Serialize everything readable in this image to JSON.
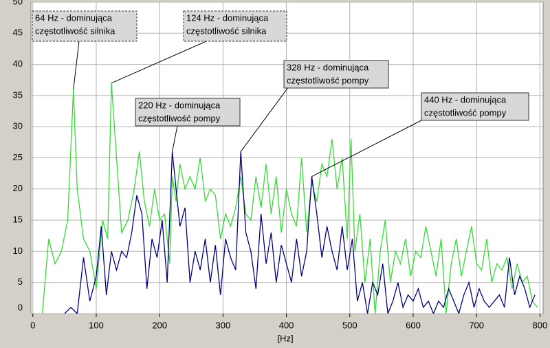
{
  "chart_data": {
    "type": "line",
    "x_label": "[Hz]",
    "xlim": [
      -3,
      805
    ],
    "ylim": [
      0,
      50
    ],
    "xticks": [
      0,
      100,
      200,
      300,
      400,
      500,
      600,
      700,
      800
    ],
    "yticks": [
      0,
      5,
      10,
      15,
      20,
      25,
      30,
      35,
      40,
      45,
      50
    ],
    "grid": true,
    "series": [
      {
        "color": "#33dd33",
        "x": [
          15,
          25,
          35,
          45,
          55,
          64,
          70,
          80,
          90,
          100,
          110,
          118,
          124,
          132,
          140,
          150,
          160,
          168,
          176,
          184,
          192,
          200,
          208,
          216,
          220,
          226,
          232,
          240,
          248,
          256,
          264,
          272,
          280,
          288,
          296,
          304,
          312,
          320,
          328,
          336,
          344,
          352,
          360,
          368,
          376,
          384,
          392,
          400,
          408,
          416,
          424,
          432,
          440,
          448,
          456,
          464,
          472,
          480,
          488,
          496,
          502,
          508,
          516,
          524,
          532,
          540,
          548,
          556,
          564,
          572,
          580,
          588,
          596,
          604,
          612,
          620,
          628,
          636,
          644,
          652,
          660,
          668,
          676,
          684,
          692,
          700,
          708,
          716,
          724,
          732,
          740,
          748,
          756,
          764,
          772,
          780,
          788,
          796
        ],
        "values": [
          0,
          12,
          8,
          10,
          15,
          36,
          20,
          12,
          10,
          4,
          15,
          12,
          37,
          25,
          13,
          15,
          20,
          26,
          18,
          14,
          20,
          15,
          16,
          8,
          22,
          18,
          24,
          20,
          22,
          20,
          25,
          18,
          20,
          19,
          12,
          16,
          14,
          17,
          22,
          16,
          15,
          22,
          17,
          24,
          16,
          22,
          13,
          20,
          16,
          14,
          25,
          13,
          21,
          18,
          24,
          22,
          28,
          20,
          25,
          12,
          28,
          10,
          16,
          5,
          12,
          0,
          10,
          15,
          5,
          10,
          8,
          12,
          6,
          10,
          9,
          14,
          10,
          6,
          12,
          0,
          8,
          12,
          6,
          10,
          14,
          8,
          7,
          12,
          5,
          8,
          7,
          9,
          4,
          8,
          5,
          6,
          2,
          1
        ]
      },
      {
        "color": "#000080",
        "x": [
          50,
          60,
          70,
          80,
          90,
          100,
          108,
          116,
          124,
          132,
          140,
          148,
          156,
          164,
          172,
          180,
          188,
          196,
          204,
          212,
          220,
          226,
          232,
          240,
          248,
          256,
          264,
          272,
          280,
          288,
          296,
          304,
          312,
          320,
          328,
          336,
          344,
          352,
          360,
          368,
          376,
          384,
          392,
          400,
          408,
          416,
          424,
          432,
          440,
          448,
          456,
          464,
          472,
          480,
          488,
          496,
          504,
          512,
          520,
          528,
          536,
          544,
          552,
          560,
          568,
          576,
          584,
          592,
          600,
          608,
          616,
          624,
          632,
          640,
          648,
          656,
          664,
          672,
          680,
          688,
          696,
          704,
          712,
          720,
          728,
          736,
          744,
          752,
          760,
          768,
          776,
          784,
          792
        ],
        "values": [
          0,
          1,
          0,
          9,
          2,
          6,
          14,
          3,
          10,
          7,
          10,
          9,
          13,
          19,
          16,
          4,
          12,
          9,
          15,
          5,
          26,
          20,
          14,
          17,
          5,
          10,
          7,
          12,
          5,
          11,
          3,
          12,
          9,
          7,
          26,
          13,
          10,
          4,
          16,
          8,
          13,
          5,
          11,
          8,
          5,
          12,
          6,
          10,
          22,
          16,
          9,
          14,
          10,
          7,
          14,
          7,
          12,
          2,
          5,
          0,
          5,
          3,
          8,
          0,
          2,
          5,
          1,
          3,
          2,
          4,
          1,
          2,
          0,
          2,
          1,
          4,
          2,
          0,
          3,
          5,
          1,
          4,
          2,
          1,
          2,
          3,
          1,
          9,
          3,
          6,
          4,
          1,
          3
        ]
      }
    ],
    "annotations": [
      {
        "lines": [
          "64 Hz - dominująca",
          "częstotliwość silnika"
        ],
        "x": 64,
        "y": 36
      },
      {
        "lines": [
          "124 Hz - dominująca",
          "częstotliwość silnika"
        ],
        "x": 124,
        "y": 37
      },
      {
        "lines": [
          "220 Hz - dominująca",
          "częstotliwość pompy"
        ],
        "x": 220,
        "y": 26
      },
      {
        "lines": [
          "328 Hz - dominująca",
          "częstotliwość pompy"
        ],
        "x": 328,
        "y": 26
      },
      {
        "lines": [
          "440 Hz - dominująca",
          "częstotliwość pompy"
        ],
        "x": 440,
        "y": 22
      }
    ]
  }
}
